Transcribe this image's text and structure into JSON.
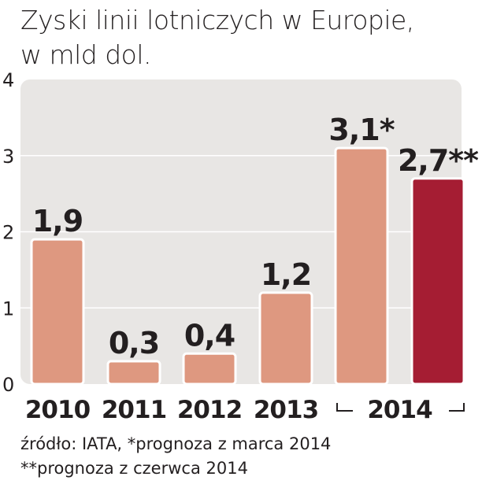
{
  "chart_data": {
    "type": "bar",
    "title": "Zyski linii lotniczych w Europie,",
    "subtitle": "w mld dol.",
    "categories": [
      "2010",
      "2011",
      "2012",
      "2013",
      "2014",
      "2014"
    ],
    "values": [
      1.9,
      0.3,
      0.4,
      1.2,
      3.1,
      2.7
    ],
    "value_labels": [
      "1,9",
      "0,3",
      "0,4",
      "1,2",
      "3,1*",
      "2,7**"
    ],
    "y_ticks": [
      "0",
      "1",
      "2",
      "3",
      "4"
    ],
    "ylim": [
      0,
      4
    ],
    "grid": true,
    "group_label": "2014",
    "bar_colors": [
      "#de9880",
      "#de9880",
      "#de9880",
      "#de9880",
      "#de9880",
      "#a51d33"
    ],
    "plot_background": "#e8e6e4",
    "footnotes": [
      "źródło: IATA, *prognoza z marca 2014",
      "**prognoza z czerwca 2014"
    ]
  }
}
